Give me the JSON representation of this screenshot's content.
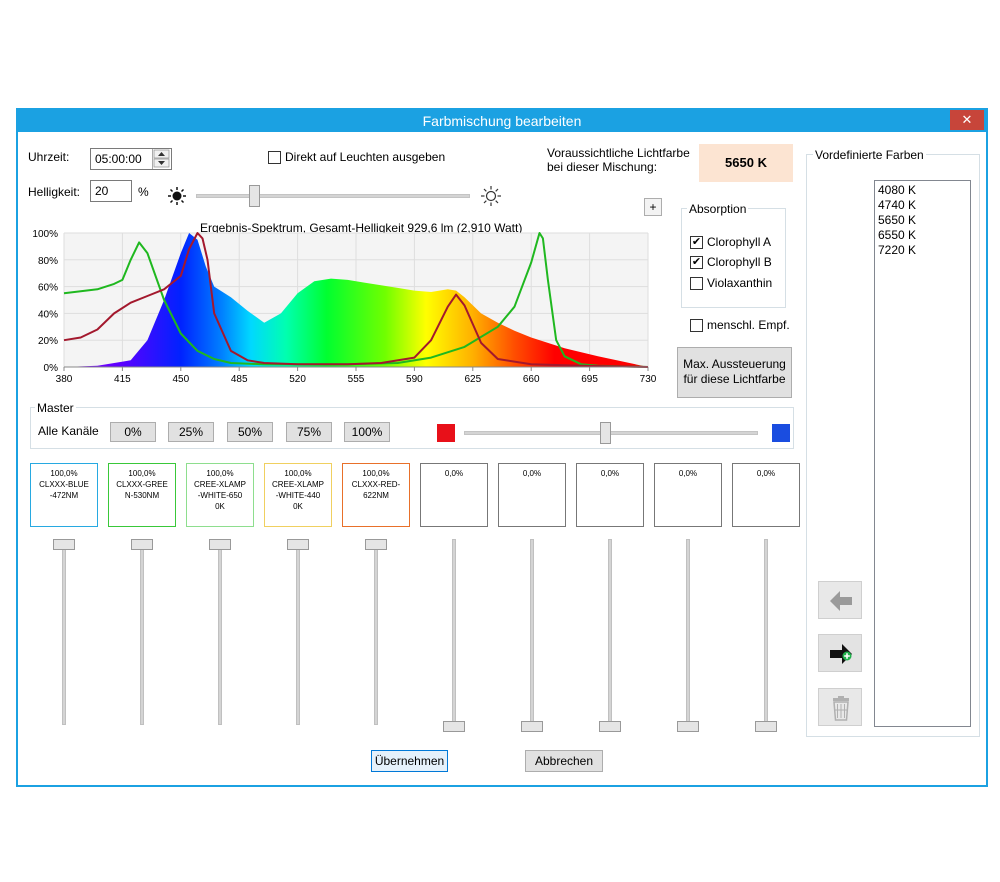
{
  "window": {
    "title": "Farbmischung bearbeiten",
    "close_glyph": "✕"
  },
  "time": {
    "label": "Uhrzeit:",
    "value": "05:00:00"
  },
  "direct_output": {
    "label": "Direkt auf Leuchten ausgeben",
    "checked": false
  },
  "expected_color": {
    "label_line1": "Voraussichtliche Lichtfarbe",
    "label_line2": "bei dieser Mischung:",
    "value": "5650 K"
  },
  "brightness": {
    "label": "Helligkeit:",
    "value": "20",
    "unit": "%",
    "slider_fraction": 0.2
  },
  "plus_label": "+",
  "absorption": {
    "title": "Absorption",
    "items": [
      {
        "label": "Clorophyll A",
        "checked": true
      },
      {
        "label": "Clorophyll B",
        "checked": true
      },
      {
        "label": "Violaxanthin",
        "checked": false
      }
    ]
  },
  "human_sensitivity": {
    "label": "menschl. Empf.",
    "checked": false
  },
  "max_button": {
    "line1": "Max. Aussteuerung",
    "line2": "für diese Lichtfarbe"
  },
  "chart_data": {
    "type": "area",
    "title": "Ergebnis-Spektrum, Gesamt-Helligkeit 929,6 lm (2,910 Watt)",
    "x_ticks": [
      "380",
      "415",
      "450",
      "485",
      "520",
      "555",
      "590",
      "625",
      "660",
      "695",
      "730"
    ],
    "y_ticks": [
      "0%",
      "20%",
      "40%",
      "60%",
      "80%",
      "100%"
    ],
    "xlim": [
      380,
      730
    ],
    "ylim": [
      0,
      100
    ],
    "grid": true,
    "series": [
      {
        "color": "spectrum",
        "x": [
          380,
          400,
          420,
          430,
          440,
          450,
          455,
          460,
          465,
          470,
          480,
          490,
          500,
          510,
          520,
          530,
          540,
          550,
          560,
          570,
          580,
          590,
          600,
          610,
          615,
          620,
          630,
          640,
          650,
          660,
          680,
          700,
          730
        ],
        "y": [
          0,
          1,
          5,
          20,
          50,
          85,
          100,
          95,
          75,
          60,
          52,
          42,
          33,
          40,
          55,
          64,
          66,
          65,
          63,
          61,
          59,
          57,
          56,
          58,
          57,
          52,
          40,
          33,
          27,
          22,
          14,
          8,
          0
        ]
      },
      {
        "color": "#1fb81f",
        "x": [
          380,
          400,
          410,
          415,
          420,
          425,
          430,
          440,
          450,
          460,
          470,
          480,
          500,
          520,
          550,
          580,
          600,
          620,
          640,
          650,
          660,
          665,
          667,
          670,
          675,
          680,
          690,
          700,
          730
        ],
        "y": [
          55,
          58,
          62,
          65,
          80,
          93,
          85,
          50,
          25,
          12,
          6,
          3,
          2,
          2,
          2,
          3,
          7,
          15,
          30,
          45,
          78,
          100,
          96,
          65,
          20,
          8,
          2,
          1,
          0
        ]
      },
      {
        "color": "#a3182d",
        "x": [
          380,
          390,
          400,
          410,
          420,
          430,
          440,
          450,
          455,
          460,
          463,
          466,
          470,
          480,
          490,
          500,
          520,
          550,
          570,
          590,
          600,
          610,
          615,
          620,
          630,
          640,
          660,
          690,
          730
        ],
        "y": [
          20,
          22,
          28,
          40,
          48,
          53,
          58,
          68,
          88,
          100,
          96,
          80,
          40,
          12,
          5,
          3,
          2,
          2,
          3,
          7,
          20,
          45,
          54,
          46,
          18,
          6,
          2,
          1,
          0
        ]
      }
    ]
  },
  "master": {
    "title": "Master",
    "all_channels_label": "Alle Kanäle",
    "presets": [
      "0%",
      "25%",
      "50%",
      "75%",
      "100%"
    ],
    "color_slider_fraction": 0.48,
    "left_color": "#e81019",
    "right_color": "#1a4de0"
  },
  "channels": [
    {
      "percent": "100,0%",
      "line1": "CLXXX-BLUE",
      "line2": "-472NM",
      "line3": "",
      "border": "#27a9e1",
      "level": 1.0
    },
    {
      "percent": "100,0%",
      "line1": "CLXXX-GREE",
      "line2": "N-530NM",
      "line3": "",
      "border": "#39c839",
      "level": 1.0
    },
    {
      "percent": "100,0%",
      "line1": "CREE-XLAMP",
      "line2": "-WHITE-650",
      "line3": "0K",
      "border": "#8ede8e",
      "level": 1.0
    },
    {
      "percent": "100,0%",
      "line1": "CREE-XLAMP",
      "line2": "-WHITE-440",
      "line3": "0K",
      "border": "#f0d060",
      "level": 1.0
    },
    {
      "percent": "100,0%",
      "line1": "CLXXX-RED-",
      "line2": "622NM",
      "line3": "",
      "border": "#e8702a",
      "level": 1.0
    },
    {
      "percent": "0,0%",
      "line1": "",
      "line2": "",
      "line3": "",
      "border": "#777777",
      "level": 0.0
    },
    {
      "percent": "0,0%",
      "line1": "",
      "line2": "",
      "line3": "",
      "border": "#777777",
      "level": 0.0
    },
    {
      "percent": "0,0%",
      "line1": "",
      "line2": "",
      "line3": "",
      "border": "#777777",
      "level": 0.0
    },
    {
      "percent": "0,0%",
      "line1": "",
      "line2": "",
      "line3": "",
      "border": "#777777",
      "level": 0.0
    },
    {
      "percent": "0,0%",
      "line1": "",
      "line2": "",
      "line3": "",
      "border": "#777777",
      "level": 0.0
    }
  ],
  "predefined": {
    "title": "Vordefinierte Farben",
    "items": [
      "4080 K",
      "4740 K",
      "5650 K",
      "6550 K",
      "7220 K"
    ],
    "icons": [
      "arrow-left-icon",
      "arrow-right-add-icon",
      "trash-icon"
    ]
  },
  "footer": {
    "apply": "Übernehmen",
    "cancel": "Abbrechen"
  }
}
